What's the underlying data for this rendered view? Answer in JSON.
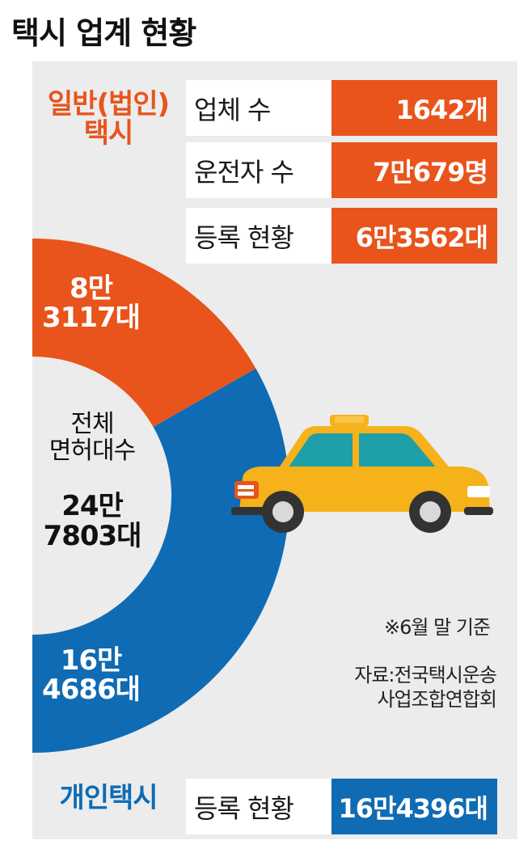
{
  "title": "택시 업계 현황",
  "corporate": {
    "title_line1": "일반(법인)",
    "title_line2": "택시",
    "rows": [
      {
        "label": "업체 수",
        "value": "1642개"
      },
      {
        "label": "운전자 수",
        "value": "7만679명"
      },
      {
        "label": "등록 현황",
        "value": "6만3562대"
      }
    ]
  },
  "individual": {
    "title": "개인택시",
    "rows": [
      {
        "label": "등록 현황",
        "value": "16만4396대"
      }
    ]
  },
  "center": {
    "line1": "전체",
    "line2": "면허대수",
    "value_line1": "24만",
    "value_line2": "7803대"
  },
  "note": "※6월 말 기준",
  "source_line1": "자료:전국택시운송",
  "source_line2": "사업조합연합회",
  "colors": {
    "orange": "#e8541c",
    "blue": "#0f6bb4",
    "taxi": "#f5b21a"
  },
  "chart_data": {
    "type": "pie",
    "title": "",
    "total": 247803,
    "slices": [
      {
        "label_line1": "8만",
        "label_line2": "3117대",
        "value": 83117,
        "color": "#e8541c"
      },
      {
        "label_line1": "16만",
        "label_line2": "4686대",
        "value": 164686,
        "color": "#0f6bb4"
      }
    ]
  },
  "icons": [
    "taxi-car-icon"
  ]
}
